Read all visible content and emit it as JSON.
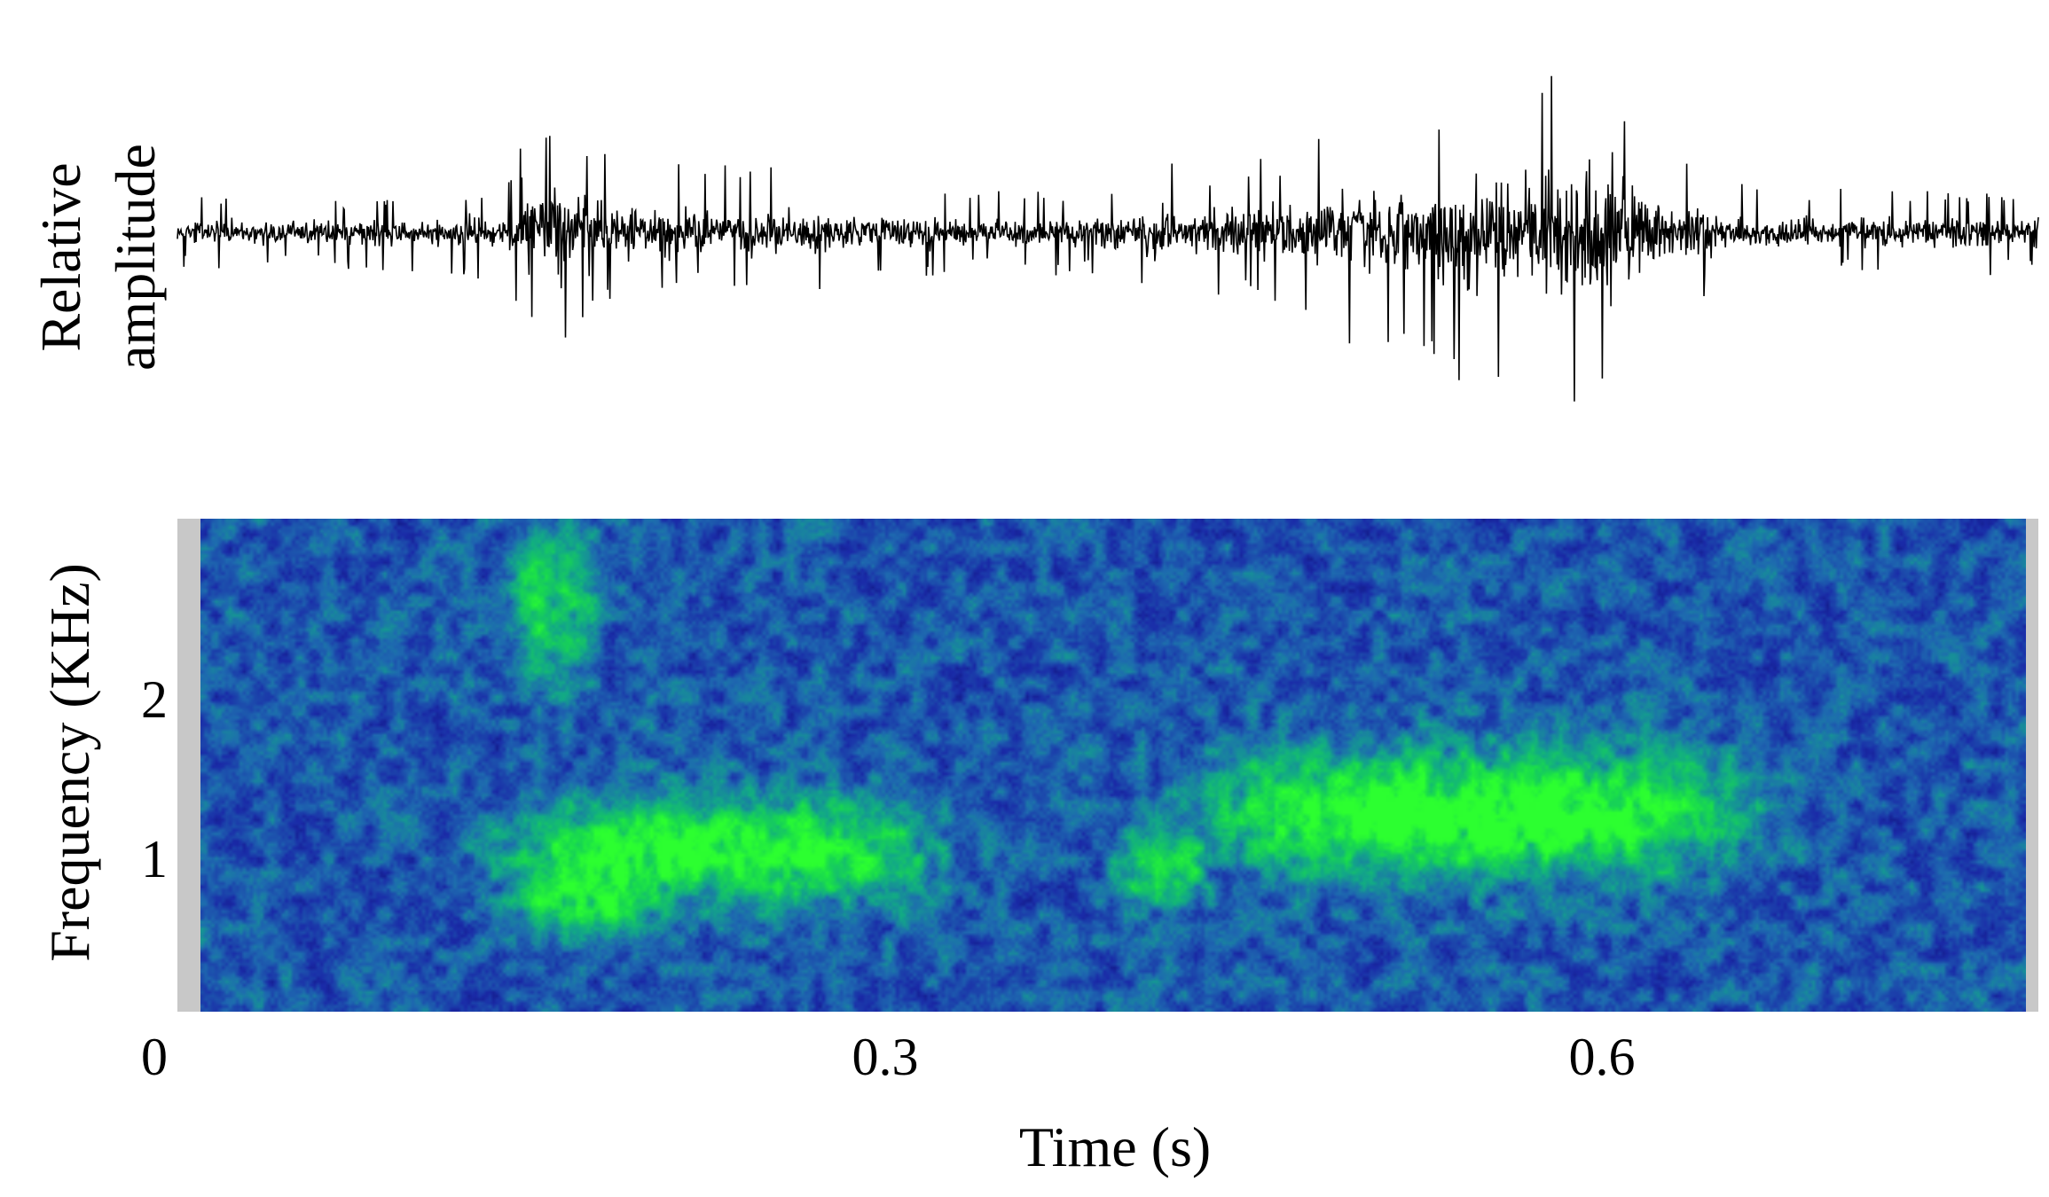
{
  "chart_data": [
    {
      "type": "line",
      "title": "",
      "xlabel": "",
      "ylabel": "Relative amplitude",
      "ylabel_lines": [
        "Relative",
        "amplitude"
      ],
      "xlim": [
        0,
        0.78
      ],
      "ylim": [
        -1,
        1
      ],
      "grid": false,
      "series": [
        {
          "envelope_x": [
            0,
            0.03,
            0.06,
            0.09,
            0.12,
            0.14,
            0.15,
            0.16,
            0.17,
            0.18,
            0.2,
            0.22,
            0.24,
            0.26,
            0.28,
            0.3,
            0.33,
            0.36,
            0.39,
            0.4,
            0.41,
            0.42,
            0.44,
            0.46,
            0.48,
            0.5,
            0.52,
            0.54,
            0.56,
            0.58,
            0.59,
            0.6,
            0.61,
            0.62,
            0.64,
            0.66,
            0.69,
            0.72,
            0.75,
            0.78
          ],
          "envelope_y": [
            0.17,
            0.17,
            0.17,
            0.18,
            0.2,
            0.3,
            0.55,
            0.72,
            0.6,
            0.4,
            0.33,
            0.3,
            0.32,
            0.3,
            0.26,
            0.22,
            0.2,
            0.2,
            0.22,
            0.26,
            0.4,
            0.3,
            0.32,
            0.42,
            0.5,
            0.55,
            0.6,
            0.7,
            0.82,
            0.92,
            1.0,
            0.92,
            0.72,
            0.45,
            0.3,
            0.22,
            0.2,
            0.2,
            0.2,
            0.2
          ]
        }
      ]
    },
    {
      "type": "heatmap",
      "title": "",
      "xlabel": "Time (s)",
      "ylabel": "Frequency (KHz)",
      "xlim": [
        0,
        0.78
      ],
      "ylim": [
        0,
        3.1
      ],
      "x_ticks": [
        "0",
        "0.3",
        "0.6"
      ],
      "x_tick_values": [
        0,
        0.3,
        0.6
      ],
      "y_ticks": [
        "1",
        "2"
      ],
      "y_tick_values": [
        1,
        2
      ],
      "grid": false,
      "colormap": [
        "#0a0a62",
        "#1a2aa8",
        "#1e6ab0",
        "#12a888",
        "#18d850",
        "#2cff30"
      ],
      "padding_color": "#c8c8c8",
      "bands": [
        {
          "x": [
            0.14,
            0.16
          ],
          "y": [
            2.1,
            3.0
          ],
          "intensity": 0.55
        },
        {
          "x": [
            0.14,
            0.3
          ],
          "y": [
            0.7,
            1.3
          ],
          "intensity": 0.85
        },
        {
          "x": [
            0.4,
            0.42
          ],
          "y": [
            0.7,
            1.1
          ],
          "intensity": 0.6
        },
        {
          "x": [
            0.44,
            0.65
          ],
          "y": [
            0.9,
            1.6
          ],
          "intensity": 0.95
        },
        {
          "x": [
            0.14,
            0.18
          ],
          "y": [
            0.5,
            0.8
          ],
          "intensity": 0.5
        }
      ]
    }
  ]
}
